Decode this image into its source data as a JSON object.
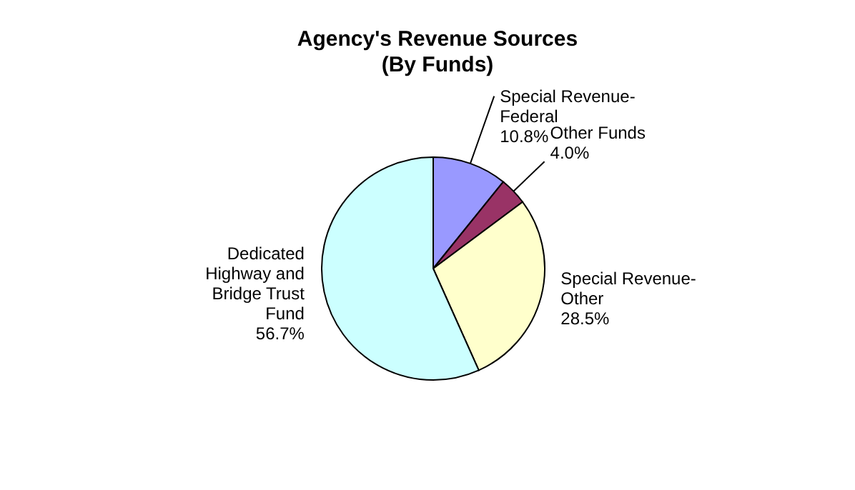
{
  "chart_data": {
    "type": "pie",
    "title": "Agency's Revenue Sources",
    "subtitle": "(By Funds)",
    "categories": [
      "Special Revenue-Federal",
      "Other Funds",
      "Special Revenue-Other",
      "Dedicated Highway and Bridge Trust Fund"
    ],
    "values": [
      10.8,
      4.0,
      28.5,
      56.7
    ],
    "value_labels": [
      "10.8%",
      "4.0%",
      "28.5%",
      "56.7%"
    ],
    "colors": [
      "#9999ff",
      "#993366",
      "#ffffcc",
      "#ccffff"
    ]
  }
}
